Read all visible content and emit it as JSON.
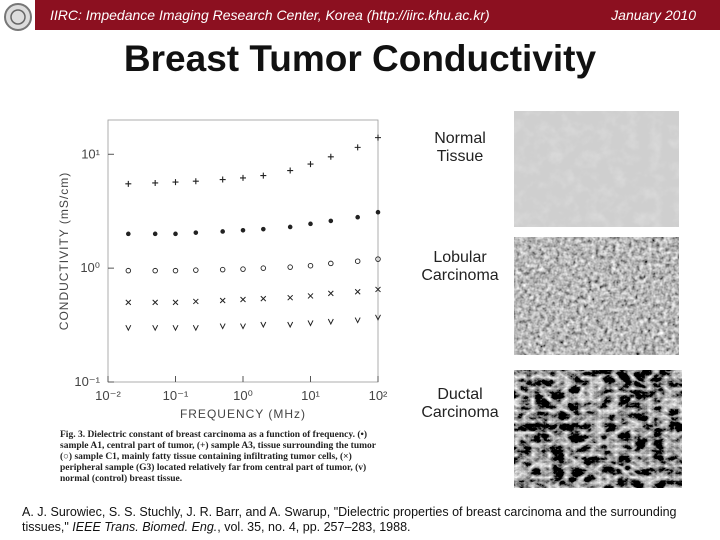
{
  "header": {
    "text": "IIRC: Impedance Imaging Research Center, Korea (http://iirc.khu.ac.kr)",
    "date": "January 2010"
  },
  "title": "Breast Tumor Conductivity",
  "chart_data": {
    "type": "scatter",
    "x_label": "FREQUENCY (MHz)",
    "y_label": "CONDUCTIVITY (mS/cm)",
    "x": [
      0.02,
      0.05,
      0.1,
      0.2,
      0.5,
      1,
      2,
      5,
      10,
      20,
      50,
      100
    ],
    "log_x": true,
    "log_y": true,
    "xlim": [
      0.01,
      100
    ],
    "ylim": [
      0.1,
      20
    ],
    "xticks": [
      {
        "value": 0.01,
        "label": "10⁻²"
      },
      {
        "value": 0.1,
        "label": "10⁻¹"
      },
      {
        "value": 1,
        "label": "10⁰"
      },
      {
        "value": 10,
        "label": "10¹"
      },
      {
        "value": 100,
        "label": "10²"
      }
    ],
    "yticks": [
      {
        "value": 0.1,
        "label": "10⁻¹"
      },
      {
        "value": 1,
        "label": "10⁰"
      },
      {
        "value": 10,
        "label": "10¹"
      }
    ],
    "series": [
      {
        "marker": "plus",
        "color": "#222222",
        "values": [
          5.5,
          5.6,
          5.7,
          5.8,
          6.0,
          6.2,
          6.5,
          7.2,
          8.2,
          9.5,
          11.5,
          14
        ]
      },
      {
        "marker": "dot",
        "color": "#222222",
        "values": [
          2.0,
          2.0,
          2.0,
          2.05,
          2.1,
          2.15,
          2.2,
          2.3,
          2.45,
          2.6,
          2.8,
          3.1
        ]
      },
      {
        "marker": "circle",
        "color": "#222222",
        "values": [
          0.95,
          0.95,
          0.95,
          0.96,
          0.97,
          0.98,
          1.0,
          1.02,
          1.05,
          1.1,
          1.15,
          1.2
        ]
      },
      {
        "marker": "cross",
        "color": "#222222",
        "values": [
          0.5,
          0.5,
          0.5,
          0.51,
          0.52,
          0.53,
          0.54,
          0.55,
          0.57,
          0.6,
          0.62,
          0.65
        ]
      },
      {
        "marker": "vee",
        "color": "#222222",
        "values": [
          0.3,
          0.3,
          0.3,
          0.3,
          0.31,
          0.31,
          0.32,
          0.32,
          0.33,
          0.34,
          0.35,
          0.37
        ]
      }
    ],
    "caption": "Fig. 3. Dielectric constant of breast carcinoma as a function of frequency. (•) sample A1, central part of tumor, (+) sample A3, tissue surrounding the tumor (○) sample C1, mainly fatty tissue containing infiltrating tumor cells, (×) peripheral sample (G3) located relatively far from central part of tumor, (v) normal (control) breast tissue."
  },
  "images": [
    {
      "label": "Normal Tissue"
    },
    {
      "label": "Lobular Carcinoma"
    },
    {
      "label": "Ductal Carcinoma"
    }
  ],
  "reference": {
    "before": "A. J. Surowiec, S. S. Stuchly, J. R. Barr, and A. Swarup, \"Dielectric properties of breast carcinoma and the surrounding tissues,\" ",
    "journal": "IEEE Trans. Biomed. Eng.",
    "after": ", vol. 35, no. 4, pp. 257–283, 1988."
  }
}
